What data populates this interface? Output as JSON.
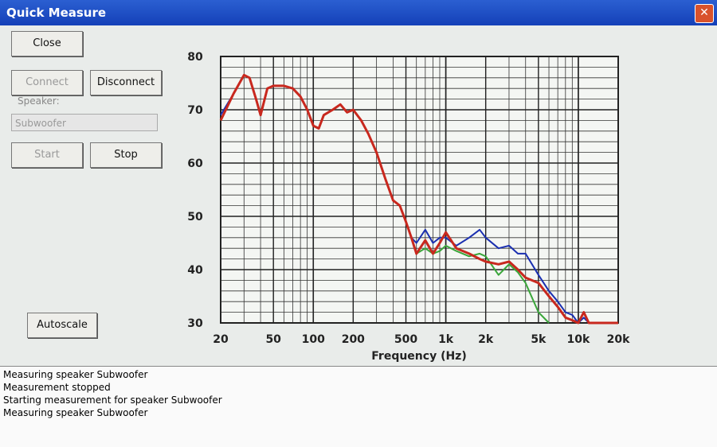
{
  "window": {
    "title": "Quick Measure"
  },
  "controls": {
    "close": "Close",
    "connect": "Connect",
    "disconnect": "Disconnect",
    "speaker_label": "Speaker:",
    "speaker_value": "Subwoofer",
    "start": "Start",
    "stop": "Stop",
    "autoscale": "Autoscale"
  },
  "log": [
    "Measuring speaker Subwoofer",
    "Measurement stopped",
    "Starting measurement for speaker Subwoofer",
    "Measuring speaker Subwoofer"
  ],
  "chart_data": {
    "type": "line",
    "x_label": "Frequency (Hz)",
    "log_x": true,
    "grid": true,
    "xlim": [
      20,
      20000
    ],
    "ylim": [
      30,
      80
    ],
    "xticks": [
      20,
      50,
      100,
      200,
      500,
      {
        "value": 1000,
        "label": "1k"
      },
      {
        "value": 2000,
        "label": "2k"
      },
      {
        "value": 5000,
        "label": "5k"
      },
      {
        "value": 10000,
        "label": "10k"
      },
      {
        "value": 20000,
        "label": "20k"
      }
    ],
    "yticks": [
      30,
      40,
      50,
      60,
      70,
      80
    ],
    "x": [
      20,
      25,
      30,
      33,
      37,
      40,
      45,
      50,
      60,
      70,
      80,
      90,
      100,
      110,
      120,
      140,
      160,
      180,
      200,
      230,
      260,
      300,
      350,
      400,
      450,
      500,
      550,
      600,
      700,
      800,
      900,
      1000,
      1200,
      1500,
      1800,
      2000,
      2500,
      3000,
      3500,
      4000,
      5000,
      6000,
      7000,
      8000,
      9000,
      10000,
      11000,
      12000,
      15000,
      20000
    ],
    "series": [
      {
        "color": "#1a2fb0",
        "values": [
          69,
          73,
          76.5,
          76,
          72,
          69,
          74,
          74.5,
          74.5,
          74,
          72.5,
          70,
          67,
          66.5,
          69,
          70,
          71,
          69.5,
          70,
          68,
          65.5,
          62,
          57,
          53,
          52,
          49,
          46,
          45,
          47.5,
          45,
          46,
          46,
          44.5,
          46,
          47.5,
          46,
          44,
          44.5,
          43,
          43,
          39,
          36,
          34,
          32,
          31.5,
          30,
          31,
          30,
          30,
          30
        ]
      },
      {
        "color": "#3aa63a",
        "values": [
          68,
          73,
          76.5,
          76,
          72,
          69,
          74,
          74.5,
          74.5,
          74,
          72.5,
          70,
          67,
          66.5,
          69,
          70,
          71,
          69.5,
          70,
          68,
          65.5,
          62,
          57,
          53,
          52,
          49,
          46,
          43,
          44,
          43,
          43.5,
          44.5,
          43.5,
          42.5,
          43,
          42.5,
          39,
          41,
          39.5,
          37.5,
          32,
          30,
          null,
          null,
          null,
          null,
          null,
          null,
          null,
          null
        ]
      },
      {
        "color": "#c8281e",
        "values": [
          68,
          73,
          76.5,
          76,
          72,
          69,
          74,
          74.5,
          74.5,
          74,
          72.5,
          70,
          67,
          66.5,
          69,
          70,
          71,
          69.5,
          70,
          68,
          65.5,
          62,
          57,
          53,
          52,
          49,
          46,
          43,
          45.5,
          43,
          45,
          47,
          44,
          43,
          42,
          41.5,
          41,
          41.5,
          40,
          38.5,
          37.5,
          35,
          33,
          31,
          30.5,
          30,
          32,
          30,
          30,
          30
        ]
      }
    ]
  }
}
